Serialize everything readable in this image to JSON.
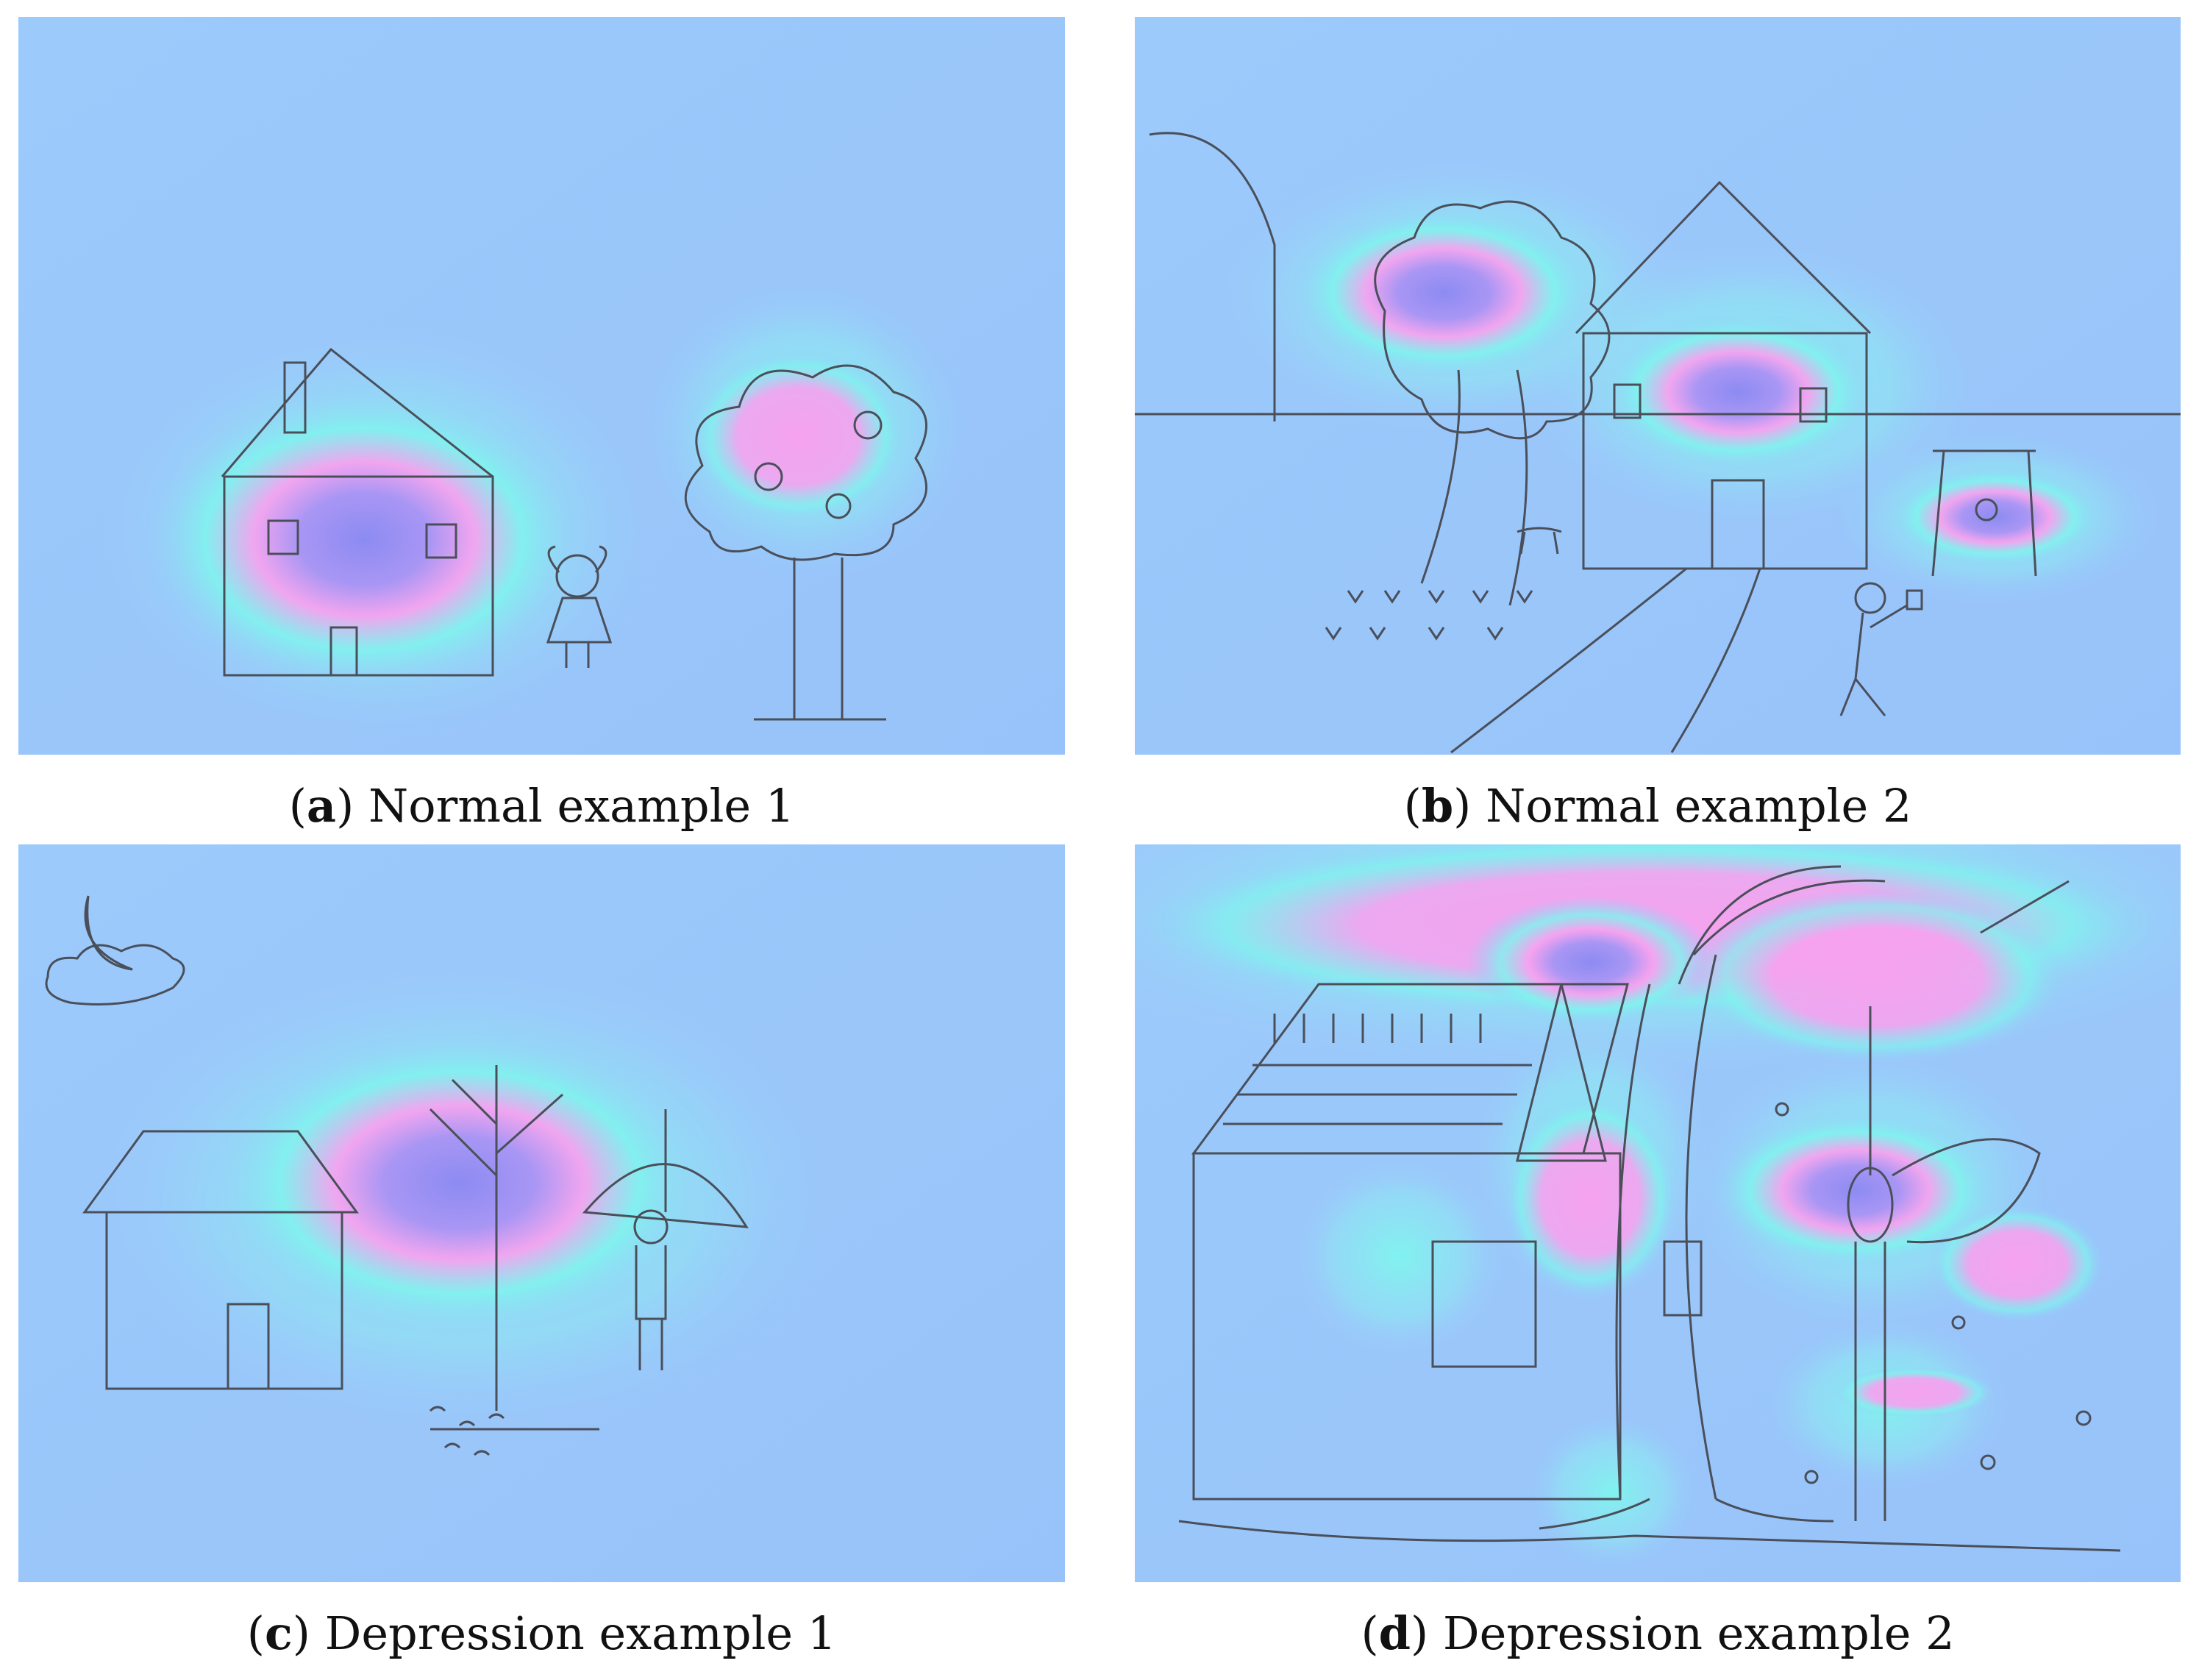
{
  "colors": {
    "background": "#9cc7fb",
    "heat_low": "#7ff5ee",
    "heat_mid": "#f8a6f0",
    "heat_high": "#8c8bf2",
    "sketch": "#4a4f5a"
  },
  "panels": [
    {
      "letter": "a",
      "caption": "Normal example 1"
    },
    {
      "letter": "b",
      "caption": "Normal example 2"
    },
    {
      "letter": "c",
      "caption": "Depression example 1"
    },
    {
      "letter": "d",
      "caption": "Depression example 2"
    }
  ]
}
